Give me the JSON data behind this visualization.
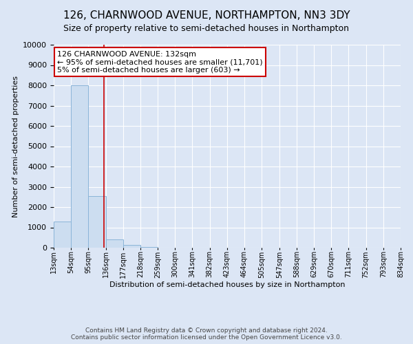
{
  "title": "126, CHARNWOOD AVENUE, NORTHAMPTON, NN3 3DY",
  "subtitle": "Size of property relative to semi-detached houses in Northampton",
  "xlabel": "Distribution of semi-detached houses by size in Northampton",
  "ylabel": "Number of semi-detached properties",
  "bin_edges": [
    13,
    54,
    95,
    136,
    177,
    218,
    259,
    300,
    341,
    382,
    423,
    464,
    505,
    547,
    588,
    629,
    670,
    711,
    752,
    793,
    834
  ],
  "bar_heights": [
    1300,
    8000,
    2550,
    400,
    150,
    50,
    0,
    0,
    0,
    0,
    0,
    0,
    0,
    0,
    0,
    0,
    0,
    0,
    0,
    0
  ],
  "bar_color": "#ccddf0",
  "bar_edge_color": "#8ab4d8",
  "property_size": 132,
  "property_line_color": "#cc0000",
  "annotation_text": "126 CHARNWOOD AVENUE: 132sqm\n← 95% of semi-detached houses are smaller (11,701)\n5% of semi-detached houses are larger (603) →",
  "annotation_box_facecolor": "#ffffff",
  "annotation_box_edgecolor": "#cc0000",
  "ylim": [
    0,
    10000
  ],
  "yticks": [
    0,
    1000,
    2000,
    3000,
    4000,
    5000,
    6000,
    7000,
    8000,
    9000,
    10000
  ],
  "grid_color": "#ffffff",
  "background_color": "#dce6f5",
  "footer_line1": "Contains HM Land Registry data © Crown copyright and database right 2024.",
  "footer_line2": "Contains public sector information licensed under the Open Government Licence v3.0.",
  "title_fontsize": 11,
  "subtitle_fontsize": 9,
  "axis_label_fontsize": 8,
  "ytick_fontsize": 8,
  "xtick_fontsize": 7,
  "annotation_fontsize": 8,
  "footer_fontsize": 6.5
}
